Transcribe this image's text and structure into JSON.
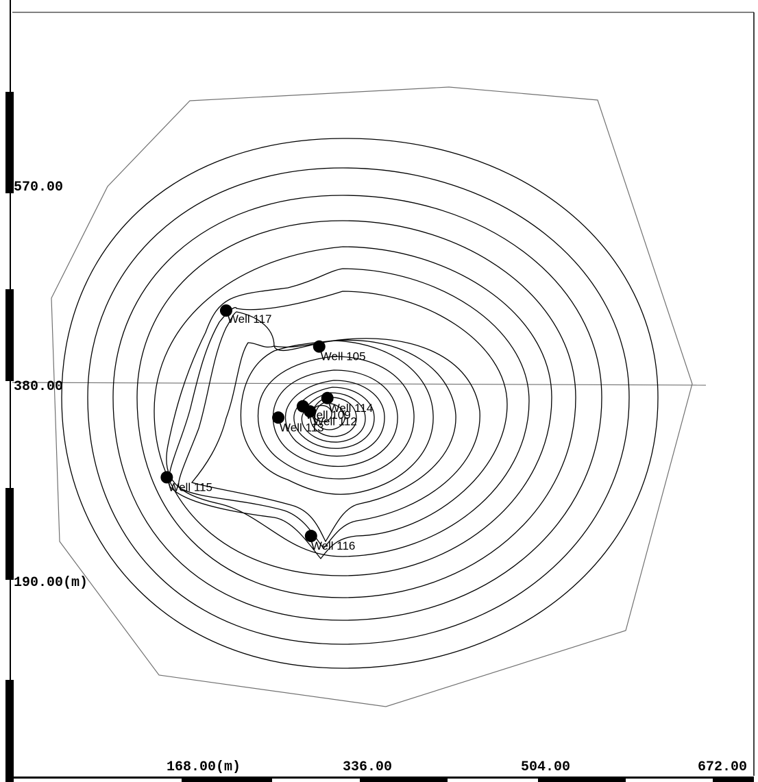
{
  "map": {
    "x_axis": {
      "unit": "m",
      "ticks": [
        {
          "value": 168,
          "label": "168.00(m)"
        },
        {
          "value": 336,
          "label": "336.00"
        },
        {
          "value": 504,
          "label": "504.00"
        },
        {
          "value": 672,
          "label": "672.00"
        }
      ]
    },
    "y_axis": {
      "unit": "m",
      "ticks": [
        {
          "value": 570,
          "label": "570.00"
        },
        {
          "value": 380,
          "label": "380.00"
        },
        {
          "value": 190,
          "label": "190.00(m)"
        }
      ]
    },
    "wells": [
      {
        "name": "Well 117",
        "x": 211,
        "y": 450
      },
      {
        "name": "Well 105",
        "x": 302,
        "y": 415
      },
      {
        "name": "Well 114",
        "x": 310,
        "y": 365
      },
      {
        "name": "Well 109",
        "x": 286,
        "y": 357
      },
      {
        "name": "Well 112",
        "x": 293,
        "y": 352
      },
      {
        "name": "Well 113",
        "x": 262,
        "y": 346
      },
      {
        "name": "Well 115",
        "x": 153,
        "y": 288
      },
      {
        "name": "Well 116",
        "x": 294,
        "y": 231
      }
    ],
    "colors": {
      "contour": "#000000",
      "boundary": "#707070",
      "well_marker": "#000000",
      "frame": "#000000"
    }
  }
}
